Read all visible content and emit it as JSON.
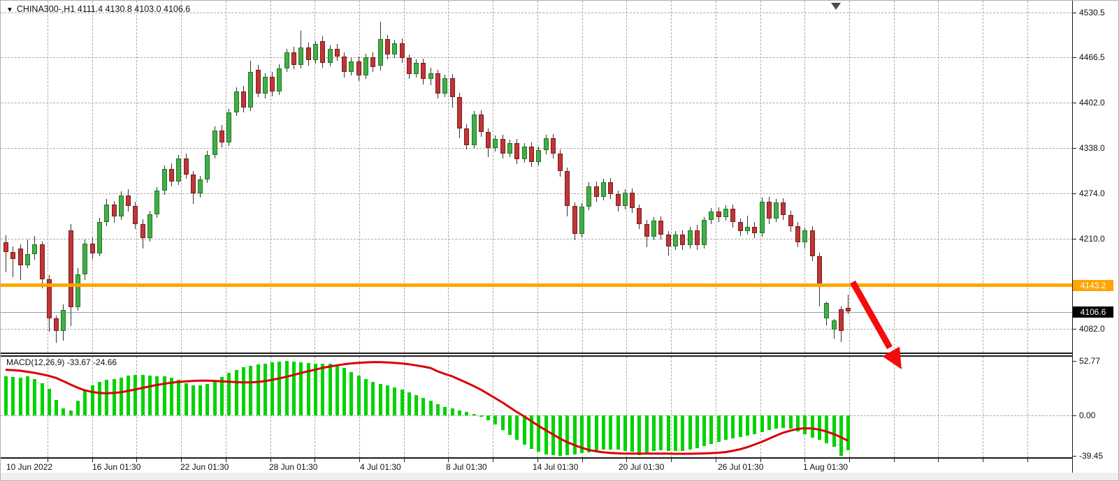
{
  "window": {
    "background": "#ffffff"
  },
  "header": {
    "title_text": "CHINA300-,H1  4111.4 4130.8 4103.0 4106.6",
    "symbol": "CHINA300-",
    "timeframe": "H1",
    "open": "4111.4",
    "high": "4130.8",
    "low": "4103.0",
    "close": "4106.6"
  },
  "indicator_label": "MACD(12,26,9) -33.67 -24.66",
  "price_axis": {
    "labels": [
      "4530.5",
      "4466.5",
      "4402.0",
      "4338.0",
      "4274.0",
      "4210.0",
      "4082.0"
    ]
  },
  "macd_axis": {
    "labels": [
      "52.77",
      "0.00",
      "-39.45"
    ]
  },
  "time_axis": {
    "labels": [
      "10 Jun 2022",
      "16 Jun 01:30",
      "22 Jun 01:30",
      "28 Jun 01:30",
      "4 Jul 01:30",
      "8 Jul 01:30",
      "14 Jul 01:30",
      "20 Jul 01:30",
      "26 Jul 01:30",
      "1 Aug 01:30"
    ]
  },
  "horizontal_level_line": {
    "value": "4143.2",
    "color": "#FFA500"
  },
  "current_price_badge": {
    "value": "4106.6",
    "color": "#000000"
  },
  "annotation_arrow": {
    "shape": "red-down-right-arrow",
    "color": "#F40B0B"
  },
  "colors": {
    "bull_fill": "#44ad4b",
    "bull_border": "#1a7a1a",
    "bear_fill": "#bf3636",
    "bear_border": "#801818",
    "wick": "#333333",
    "macd_hist": "#00d300",
    "macd_signal": "#d90000",
    "grid": "#a9a9a9",
    "level_orange": "#FFA500"
  },
  "chart_data": {
    "type": "candlestick-with-macd",
    "title": "CHINA300-,H1",
    "price_ylim": [
      4082.0,
      4530.5
    ],
    "price_ticks": [
      4530.5,
      4466.5,
      4402.0,
      4338.0,
      4274.0,
      4210.0,
      4146.0,
      4082.0
    ],
    "macd_ylim": [
      -39.45,
      52.77
    ],
    "macd_ticks": [
      52.77,
      0.0,
      -39.45
    ],
    "x_tick_labels": [
      "10 Jun 2022",
      "16 Jun 01:30",
      "22 Jun 01:30",
      "28 Jun 01:30",
      "4 Jul 01:30",
      "8 Jul 01:30",
      "14 Jul 01:30",
      "20 Jul 01:30",
      "26 Jul 01:30",
      "1 Aug 01:30"
    ],
    "level_line_value": 4143.2,
    "last_price": 4106.6,
    "candles_ohlc": [
      [
        4205,
        4215,
        4162,
        4191
      ],
      [
        4191,
        4199,
        4155,
        4181
      ],
      [
        4196,
        4202,
        4151,
        4172
      ],
      [
        4172,
        4209,
        4168,
        4188
      ],
      [
        4188,
        4214,
        4180,
        4202
      ],
      [
        4202,
        4206,
        4139,
        4152
      ],
      [
        4152,
        4158,
        4078,
        4097
      ],
      [
        4097,
        4101,
        4062,
        4079
      ],
      [
        4079,
        4117,
        4065,
        4109
      ],
      [
        4222,
        4231,
        4086,
        4113
      ],
      [
        4113,
        4168,
        4108,
        4159
      ],
      [
        4159,
        4209,
        4151,
        4203
      ],
      [
        4203,
        4212,
        4181,
        4189
      ],
      [
        4189,
        4239,
        4185,
        4233
      ],
      [
        4233,
        4266,
        4228,
        4258
      ],
      [
        4258,
        4263,
        4232,
        4241
      ],
      [
        4241,
        4277,
        4236,
        4271
      ],
      [
        4271,
        4280,
        4248,
        4256
      ],
      [
        4256,
        4262,
        4224,
        4231
      ],
      [
        4231,
        4237,
        4196,
        4211
      ],
      [
        4211,
        4249,
        4206,
        4244
      ],
      [
        4244,
        4283,
        4239,
        4278
      ],
      [
        4278,
        4314,
        4272,
        4309
      ],
      [
        4309,
        4317,
        4284,
        4291
      ],
      [
        4291,
        4329,
        4286,
        4324
      ],
      [
        4324,
        4331,
        4295,
        4301
      ],
      [
        4301,
        4306,
        4259,
        4274
      ],
      [
        4274,
        4299,
        4268,
        4294
      ],
      [
        4294,
        4334,
        4289,
        4329
      ],
      [
        4329,
        4369,
        4324,
        4363
      ],
      [
        4363,
        4371,
        4339,
        4346
      ],
      [
        4346,
        4394,
        4341,
        4389
      ],
      [
        4389,
        4425,
        4384,
        4419
      ],
      [
        4419,
        4427,
        4389,
        4396
      ],
      [
        4396,
        4462,
        4391,
        4446
      ],
      [
        4449,
        4456,
        4411,
        4416
      ],
      [
        4416,
        4444,
        4409,
        4439
      ],
      [
        4439,
        4446,
        4412,
        4419
      ],
      [
        4419,
        4457,
        4414,
        4451
      ],
      [
        4451,
        4479,
        4446,
        4474
      ],
      [
        4474,
        4482,
        4450,
        4456
      ],
      [
        4456,
        4505,
        4451,
        4481
      ],
      [
        4481,
        4488,
        4455,
        4463
      ],
      [
        4463,
        4490,
        4458,
        4486
      ],
      [
        4490,
        4497,
        4452,
        4459
      ],
      [
        4459,
        4484,
        4454,
        4479
      ],
      [
        4479,
        4486,
        4462,
        4468
      ],
      [
        4468,
        4474,
        4438,
        4446
      ],
      [
        4446,
        4466,
        4441,
        4461
      ],
      [
        4461,
        4468,
        4433,
        4441
      ],
      [
        4441,
        4472,
        4436,
        4467
      ],
      [
        4467,
        4474,
        4446,
        4453
      ],
      [
        4455,
        4518,
        4448,
        4493
      ],
      [
        4493,
        4499,
        4464,
        4471
      ],
      [
        4471,
        4492,
        4466,
        4487
      ],
      [
        4487,
        4494,
        4459,
        4466
      ],
      [
        4466,
        4471,
        4436,
        4443
      ],
      [
        4443,
        4464,
        4438,
        4459
      ],
      [
        4459,
        4465,
        4429,
        4436
      ],
      [
        4436,
        4452,
        4428,
        4444
      ],
      [
        4444,
        4449,
        4409,
        4416
      ],
      [
        4416,
        4442,
        4411,
        4437
      ],
      [
        4437,
        4443,
        4396,
        4411
      ],
      [
        4411,
        4417,
        4352,
        4366
      ],
      [
        4366,
        4372,
        4336,
        4342
      ],
      [
        4342,
        4391,
        4338,
        4386
      ],
      [
        4386,
        4392,
        4354,
        4361
      ],
      [
        4361,
        4366,
        4326,
        4338
      ],
      [
        4338,
        4356,
        4333,
        4351
      ],
      [
        4351,
        4357,
        4324,
        4331
      ],
      [
        4331,
        4350,
        4326,
        4345
      ],
      [
        4345,
        4351,
        4316,
        4323
      ],
      [
        4323,
        4345,
        4318,
        4340
      ],
      [
        4340,
        4346,
        4312,
        4319
      ],
      [
        4319,
        4340,
        4314,
        4335
      ],
      [
        4335,
        4357,
        4330,
        4352
      ],
      [
        4352,
        4358,
        4324,
        4331
      ],
      [
        4331,
        4336,
        4298,
        4306
      ],
      [
        4306,
        4311,
        4241,
        4256
      ],
      [
        4256,
        4261,
        4208,
        4217
      ],
      [
        4217,
        4260,
        4212,
        4255
      ],
      [
        4255,
        4290,
        4250,
        4284
      ],
      [
        4284,
        4291,
        4262,
        4269
      ],
      [
        4269,
        4295,
        4264,
        4290
      ],
      [
        4290,
        4296,
        4266,
        4273
      ],
      [
        4273,
        4278,
        4248,
        4256
      ],
      [
        4256,
        4280,
        4251,
        4275
      ],
      [
        4275,
        4281,
        4246,
        4253
      ],
      [
        4253,
        4258,
        4224,
        4231
      ],
      [
        4231,
        4236,
        4198,
        4213
      ],
      [
        4213,
        4240,
        4208,
        4235
      ],
      [
        4235,
        4241,
        4209,
        4216
      ],
      [
        4216,
        4221,
        4186,
        4199
      ],
      [
        4199,
        4221,
        4194,
        4216
      ],
      [
        4216,
        4222,
        4194,
        4201
      ],
      [
        4201,
        4227,
        4196,
        4222
      ],
      [
        4222,
        4230,
        4194,
        4201
      ],
      [
        4201,
        4240,
        4196,
        4236
      ],
      [
        4236,
        4253,
        4231,
        4248
      ],
      [
        4248,
        4254,
        4233,
        4240
      ],
      [
        4240,
        4257,
        4235,
        4252
      ],
      [
        4252,
        4258,
        4226,
        4233
      ],
      [
        4233,
        4238,
        4214,
        4221
      ],
      [
        4221,
        4242,
        4216,
        4227
      ],
      [
        4227,
        4233,
        4211,
        4218
      ],
      [
        4218,
        4268,
        4213,
        4262
      ],
      [
        4262,
        4269,
        4231,
        4238
      ],
      [
        4238,
        4266,
        4233,
        4261
      ],
      [
        4261,
        4267,
        4236,
        4243
      ],
      [
        4243,
        4249,
        4220,
        4228
      ],
      [
        4228,
        4233,
        4198,
        4205
      ],
      [
        4205,
        4226,
        4196,
        4222
      ],
      [
        4222,
        4228,
        4178,
        4185
      ],
      [
        4185,
        4190,
        4114,
        4143
      ],
      [
        4097,
        4121,
        4087,
        4119
      ],
      [
        4081,
        4096,
        4068,
        4094
      ],
      [
        4110,
        4114,
        4063,
        4079
      ],
      [
        4111.4,
        4130.8,
        4103.0,
        4106.6
      ]
    ],
    "macd_histogram": [
      38,
      37.5,
      37,
      38,
      35.5,
      31,
      26,
      15,
      7,
      5,
      14,
      24,
      29,
      32.5,
      34.5,
      35.5,
      37,
      38.5,
      39.5,
      39.5,
      38.5,
      38,
      38,
      37,
      34.5,
      31.5,
      29.5,
      29,
      30.5,
      33.5,
      37.5,
      41.5,
      44.5,
      47,
      48.5,
      49.5,
      50.5,
      51.5,
      52.5,
      52.77,
      52.5,
      51.5,
      50.8,
      50.3,
      50.5,
      50,
      49,
      46,
      42.5,
      39,
      35.5,
      32.5,
      30.5,
      29,
      27,
      25,
      22.5,
      20,
      17,
      14,
      11,
      8.5,
      6.5,
      5,
      3.5,
      1.5,
      -1.5,
      -5,
      -9,
      -14,
      -19,
      -24,
      -28.5,
      -32.5,
      -35.5,
      -38,
      -38.8,
      -39.2,
      -38.8,
      -38,
      -37,
      -36,
      -34.5,
      -33.5,
      -33,
      -33.5,
      -34.5,
      -35.5,
      -38.8,
      -37,
      -34.5,
      -34,
      -34.5,
      -35,
      -34.5,
      -33.5,
      -32,
      -30,
      -28,
      -26,
      -24,
      -22.5,
      -21,
      -20,
      -18.5,
      -16.5,
      -14.5,
      -13,
      -12.5,
      -13,
      -15.5,
      -18.5,
      -21.5,
      -24,
      -27,
      -30.5,
      -39.45,
      -33.67
    ],
    "macd_signal": [
      44.5,
      44,
      43.5,
      42.5,
      41.5,
      40,
      38.5,
      36.5,
      33.5,
      30,
      27,
      24.5,
      22.8,
      21.8,
      21.5,
      21.8,
      22.5,
      23.8,
      25.2,
      26.8,
      28.2,
      29.6,
      30.8,
      31.8,
      32.6,
      33.2,
      33.6,
      33.8,
      33.8,
      33.6,
      33.2,
      32.8,
      32.4,
      32.2,
      32.2,
      32.6,
      33.4,
      34.6,
      36,
      37.6,
      39.4,
      41.2,
      43,
      44.6,
      46.2,
      47.6,
      48.8,
      49.8,
      50.6,
      51.2,
      51.6,
      51.8,
      51.8,
      51.6,
      51.2,
      50.6,
      49.8,
      48.8,
      47.6,
      46.2,
      43,
      40.5,
      38,
      35,
      32,
      28.5,
      25,
      21,
      17,
      12.5,
      8,
      3.5,
      -1,
      -5.5,
      -10,
      -14.5,
      -18.5,
      -22.5,
      -26,
      -29,
      -31.5,
      -33.5,
      -35,
      -36,
      -36.6,
      -37,
      -37.2,
      -37.2,
      -37.2,
      -37.2,
      -37.2,
      -37.2,
      -37.3,
      -37.4,
      -37.4,
      -37.4,
      -37.3,
      -37.1,
      -36.8,
      -36.4,
      -35.8,
      -34.6,
      -33,
      -31,
      -28.6,
      -25.8,
      -22.8,
      -19.8,
      -17,
      -14.8,
      -13.2,
      -12.6,
      -12.8,
      -13.8,
      -15.6,
      -18.2,
      -21.2,
      -24.66
    ],
    "macd_current": -33.67,
    "signal_current": -24.66
  }
}
